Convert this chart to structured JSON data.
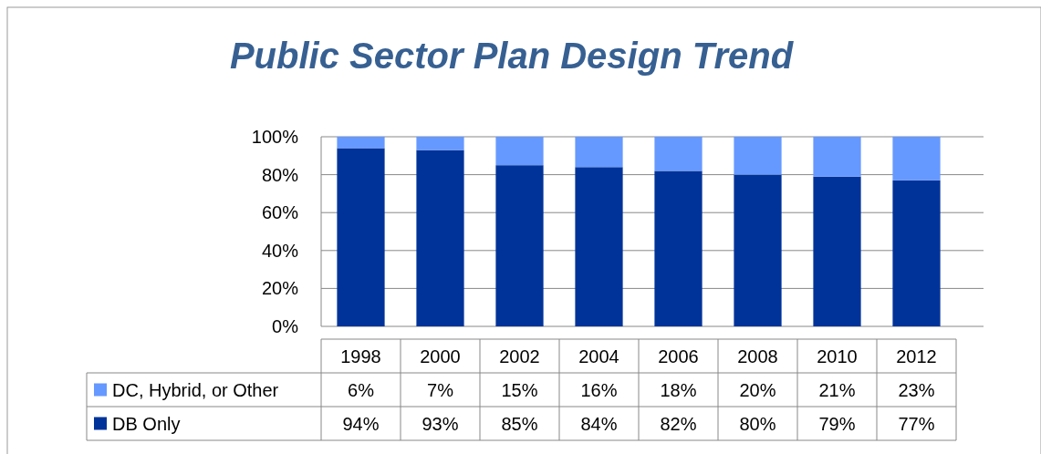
{
  "chart_data": {
    "type": "bar",
    "title": "Public Sector Plan Design Trend",
    "stacked": true,
    "categories": [
      "1998",
      "2000",
      "2002",
      "2004",
      "2006",
      "2008",
      "2010",
      "2012"
    ],
    "series": [
      {
        "name": "DB Only",
        "color": "#003399",
        "values": [
          94,
          93,
          85,
          84,
          82,
          80,
          79,
          77
        ],
        "value_labels": [
          "94%",
          "93%",
          "85%",
          "84%",
          "82%",
          "80%",
          "79%",
          "77%"
        ]
      },
      {
        "name": "DC, Hybrid, or Other",
        "color": "#6699ff",
        "values": [
          6,
          7,
          15,
          16,
          18,
          20,
          21,
          23
        ],
        "value_labels": [
          "6%",
          "7%",
          "15%",
          "16%",
          "18%",
          "20%",
          "21%",
          "23%"
        ]
      }
    ],
    "ylim": [
      0,
      100
    ],
    "yticks": [
      {
        "value": 0,
        "label": "0%"
      },
      {
        "value": 20,
        "label": "20%"
      },
      {
        "value": 40,
        "label": "40%"
      },
      {
        "value": 60,
        "label": "60%"
      },
      {
        "value": 80,
        "label": "80%"
      },
      {
        "value": 100,
        "label": "100%"
      }
    ],
    "grid": "y",
    "legend": "bottom"
  }
}
